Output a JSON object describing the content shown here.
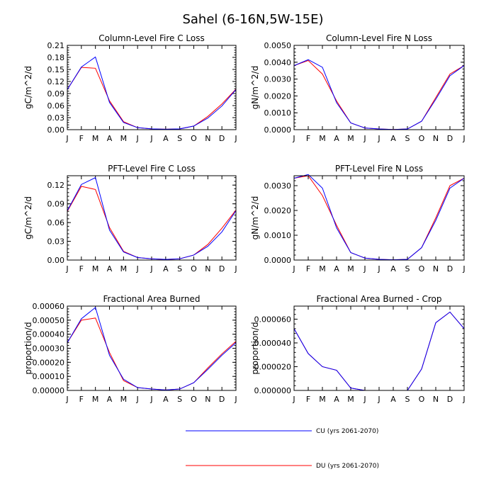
{
  "title": "Sahel (6-16N,5W-15E)",
  "legend": [
    {
      "label": "CU (yrs 2061-2070)",
      "color": "#0000ff"
    },
    {
      "label": "DU (yrs 2061-2070)",
      "color": "#ff0000"
    }
  ],
  "chart_data": [
    {
      "type": "line",
      "title": "Column-Level Fire C Loss",
      "ylabel": "gC/m^2/d",
      "categories": [
        "J",
        "F",
        "M",
        "A",
        "M",
        "J",
        "J",
        "A",
        "S",
        "O",
        "N",
        "D",
        "J"
      ],
      "ylim": [
        0,
        0.21
      ],
      "yticks": [
        "0.00",
        "0.03",
        "0.06",
        "0.09",
        "0.12",
        "0.15",
        "0.18",
        "0.21"
      ],
      "series": [
        {
          "name": "CU (yrs 2061-2070)",
          "color": "#0000ff",
          "values": [
            0.1,
            0.156,
            0.181,
            0.068,
            0.018,
            0.005,
            0.002,
            0.001,
            0.002,
            0.009,
            0.029,
            0.059,
            0.1
          ]
        },
        {
          "name": "DU (yrs 2061-2070)",
          "color": "#ff0000",
          "values": [
            0.1,
            0.155,
            0.153,
            0.072,
            0.02,
            0.005,
            0.002,
            0.001,
            0.002,
            0.009,
            0.033,
            0.064,
            0.101
          ]
        }
      ]
    },
    {
      "type": "line",
      "title": "Column-Level Fire N Loss",
      "ylabel": "gN/m^2/d",
      "categories": [
        "J",
        "F",
        "M",
        "A",
        "M",
        "J",
        "J",
        "A",
        "S",
        "O",
        "N",
        "D",
        "J"
      ],
      "ylim": [
        0,
        0.005
      ],
      "yticks": [
        "0.0000",
        "0.0010",
        "0.0020",
        "0.0030",
        "0.0040",
        "0.0050"
      ],
      "series": [
        {
          "name": "CU (yrs 2061-2070)",
          "color": "#0000ff",
          "values": [
            0.0038,
            0.00415,
            0.0037,
            0.0016,
            0.0004,
            0.0001,
            4e-05,
            1e-05,
            4e-05,
            0.0005,
            0.0018,
            0.0032,
            0.0038
          ]
        },
        {
          "name": "DU (yrs 2061-2070)",
          "color": "#ff0000",
          "values": [
            0.0038,
            0.0041,
            0.0033,
            0.0017,
            0.0004,
            0.0001,
            4e-05,
            1e-05,
            4e-05,
            0.0005,
            0.0019,
            0.0033,
            0.0038
          ]
        }
      ]
    },
    {
      "type": "line",
      "title": "PFT-Level Fire C Loss",
      "ylabel": "gC/m^2/d",
      "categories": [
        "J",
        "F",
        "M",
        "A",
        "M",
        "J",
        "J",
        "A",
        "S",
        "O",
        "N",
        "D",
        "J"
      ],
      "ylim": [
        0,
        0.135
      ],
      "yticks": [
        "0.00",
        "0.03",
        "0.06",
        "0.09",
        "0.12"
      ],
      "series": [
        {
          "name": "CU (yrs 2061-2070)",
          "color": "#0000ff",
          "values": [
            0.079,
            0.121,
            0.132,
            0.048,
            0.013,
            0.004,
            0.002,
            0.001,
            0.002,
            0.008,
            0.022,
            0.045,
            0.079
          ]
        },
        {
          "name": "DU (yrs 2061-2070)",
          "color": "#ff0000",
          "values": [
            0.078,
            0.118,
            0.113,
            0.052,
            0.014,
            0.004,
            0.002,
            0.001,
            0.002,
            0.008,
            0.025,
            0.051,
            0.08
          ]
        }
      ]
    },
    {
      "type": "line",
      "title": "PFT-Level Fire N Loss",
      "ylabel": "gN/m^2/d",
      "categories": [
        "J",
        "F",
        "M",
        "A",
        "M",
        "J",
        "J",
        "A",
        "S",
        "O",
        "N",
        "D",
        "J"
      ],
      "ylim": [
        0,
        0.0034
      ],
      "yticks": [
        "0.0000",
        "0.0010",
        "0.0020",
        "0.0030"
      ],
      "series": [
        {
          "name": "CU (yrs 2061-2070)",
          "color": "#0000ff",
          "values": [
            0.0033,
            0.00345,
            0.0029,
            0.0013,
            0.0003,
            8e-05,
            3e-05,
            1e-05,
            3e-05,
            0.0005,
            0.0016,
            0.0029,
            0.0033
          ]
        },
        {
          "name": "DU (yrs 2061-2070)",
          "color": "#ff0000",
          "values": [
            0.0033,
            0.0034,
            0.0026,
            0.0014,
            0.0003,
            8e-05,
            3e-05,
            1e-05,
            3e-05,
            0.0005,
            0.0017,
            0.003,
            0.0033
          ]
        }
      ]
    },
    {
      "type": "line",
      "title": "Fractional Area Burned",
      "ylabel": "proportion/d",
      "categories": [
        "J",
        "F",
        "M",
        "A",
        "M",
        "J",
        "J",
        "A",
        "S",
        "O",
        "N",
        "D",
        "J"
      ],
      "ylim": [
        0,
        0.0006
      ],
      "yticks": [
        "0.00000",
        "0.00010",
        "0.00020",
        "0.00030",
        "0.00040",
        "0.00050",
        "0.00060"
      ],
      "series": [
        {
          "name": "CU (yrs 2061-2070)",
          "color": "#0000ff",
          "values": [
            0.00034,
            0.00051,
            0.00059,
            0.00025,
            8e-05,
            2e-05,
            1e-05,
            3e-06,
            1e-05,
            5.5e-05,
            0.00015,
            0.00025,
            0.00034
          ]
        },
        {
          "name": "DU (yrs 2061-2070)",
          "color": "#ff0000",
          "values": [
            0.00034,
            0.0005,
            0.000515,
            0.00027,
            7e-05,
            2e-05,
            1e-05,
            3e-06,
            1e-05,
            5.5e-05,
            0.00016,
            0.00026,
            0.00035
          ]
        }
      ]
    },
    {
      "type": "line",
      "title": "Fractional Area Burned - Crop",
      "ylabel": "proportion/d",
      "categories": [
        "J",
        "F",
        "M",
        "A",
        "M",
        "J",
        "J",
        "A",
        "S",
        "O",
        "N",
        "D",
        "J"
      ],
      "ylim": [
        0,
        7.1e-05
      ],
      "yticks": [
        "0.000000",
        "0.000020",
        "0.000040",
        "0.000060"
      ],
      "series": [
        {
          "name": "CU (yrs 2061-2070)",
          "color": "#0000ff",
          "values": [
            5.2e-05,
            3.1e-05,
            2e-05,
            1.7e-05,
            2e-06,
            0.0,
            0.0,
            0.0,
            0.0,
            1.8e-05,
            5.7e-05,
            6.6e-05,
            5.2e-05
          ]
        },
        {
          "name": "DU (yrs 2061-2070)",
          "color": "#ff0000",
          "values": [
            5.2e-05,
            3.1e-05,
            2e-05,
            1.7e-05,
            2e-06,
            0.0,
            0.0,
            0.0,
            0.0,
            1.8e-05,
            5.7e-05,
            6.6e-05,
            5.2e-05
          ]
        }
      ]
    }
  ]
}
